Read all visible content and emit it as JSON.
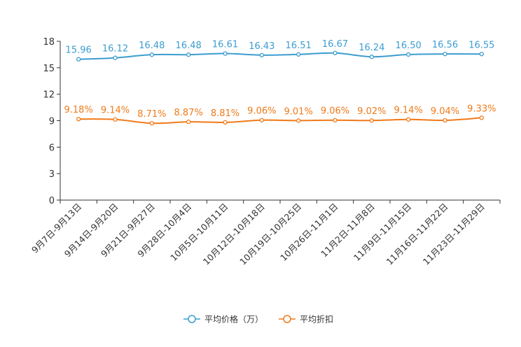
{
  "chart_data": {
    "type": "line",
    "title": "",
    "xlabel": "",
    "ylabel": "",
    "ylim": [
      0,
      18
    ],
    "yticks": [
      0,
      3,
      6,
      9,
      12,
      15,
      18
    ],
    "categories": [
      "9月7日-9月13日",
      "9月14日-9月20日",
      "9月21日-9月27日",
      "9月28日-10月4日",
      "10月5日-10月11日",
      "10月12日-10月18日",
      "10月19日-10月25日",
      "10月26日-11月1日",
      "11月2日-11月8日",
      "11月9日-11月15日",
      "11月16日-11月22日",
      "11月23日-11月29日"
    ],
    "series": [
      {
        "name": "平均价格（万）",
        "color": "#3c9dd0",
        "values": [
          15.96,
          16.12,
          16.48,
          16.48,
          16.61,
          16.43,
          16.51,
          16.67,
          16.24,
          16.5,
          16.56,
          16.55
        ],
        "labels": [
          "15.96",
          "16.12",
          "16.48",
          "16.48",
          "16.61",
          "16.43",
          "16.51",
          "16.67",
          "16.24",
          "16.50",
          "16.56",
          "16.55"
        ]
      },
      {
        "name": "平均折扣",
        "color": "#f07a19",
        "values": [
          9.18,
          9.14,
          8.71,
          8.87,
          8.81,
          9.06,
          9.01,
          9.06,
          9.02,
          9.14,
          9.04,
          9.33
        ],
        "labels": [
          "9.18%",
          "9.14%",
          "8.71%",
          "8.87%",
          "8.81%",
          "9.06%",
          "9.01%",
          "9.06%",
          "9.02%",
          "9.14%",
          "9.04%",
          "9.33%"
        ]
      }
    ],
    "legend": "bottom-center",
    "grid": false
  }
}
